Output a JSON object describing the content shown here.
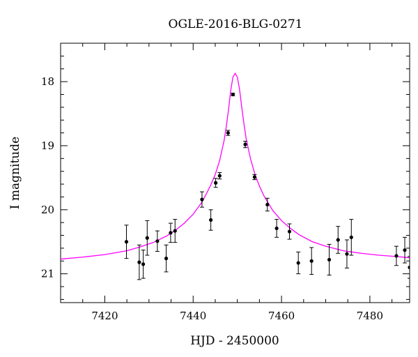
{
  "chart_data": {
    "type": "scatter",
    "title": "OGLE-2016-BLG-0271",
    "xlabel": "HJD - 2450000",
    "ylabel": "I magnitude",
    "xlim": [
      7410,
      7489
    ],
    "ylim": [
      21.45,
      17.4
    ],
    "y_inverted": true,
    "grid": false,
    "xticks": [
      7420,
      7440,
      7460,
      7480
    ],
    "xtick_labels": [
      "7420",
      "7440",
      "7460",
      "7480"
    ],
    "yticks": [
      18,
      19,
      20,
      21
    ],
    "ytick_labels": [
      "18",
      "19",
      "20",
      "21"
    ],
    "series": [
      {
        "kind": "points_with_errorbars",
        "color": "#000000",
        "points": [
          {
            "x": 7424.9,
            "y": 20.5,
            "err": 0.26
          },
          {
            "x": 7427.8,
            "y": 20.82,
            "err": 0.27
          },
          {
            "x": 7428.7,
            "y": 20.85,
            "err": 0.22
          },
          {
            "x": 7429.6,
            "y": 20.44,
            "err": 0.27
          },
          {
            "x": 7431.9,
            "y": 20.49,
            "err": 0.16
          },
          {
            "x": 7433.9,
            "y": 20.76,
            "err": 0.21
          },
          {
            "x": 7434.9,
            "y": 20.36,
            "err": 0.15
          },
          {
            "x": 7435.9,
            "y": 20.33,
            "err": 0.18
          },
          {
            "x": 7442.0,
            "y": 19.84,
            "err": 0.12
          },
          {
            "x": 7444.0,
            "y": 20.16,
            "err": 0.16
          },
          {
            "x": 7445.1,
            "y": 19.58,
            "err": 0.07
          },
          {
            "x": 7446.0,
            "y": 19.47,
            "err": 0.05
          },
          {
            "x": 7447.9,
            "y": 18.8,
            "err": 0.04
          },
          {
            "x": 7449.0,
            "y": 18.2,
            "err": 0.02
          },
          {
            "x": 7451.8,
            "y": 18.98,
            "err": 0.05
          },
          {
            "x": 7453.9,
            "y": 19.49,
            "err": 0.04
          },
          {
            "x": 7456.8,
            "y": 19.92,
            "err": 0.1
          },
          {
            "x": 7458.9,
            "y": 20.29,
            "err": 0.14
          },
          {
            "x": 7461.8,
            "y": 20.34,
            "err": 0.12
          },
          {
            "x": 7463.8,
            "y": 20.83,
            "err": 0.17
          },
          {
            "x": 7466.8,
            "y": 20.8,
            "err": 0.21
          },
          {
            "x": 7470.8,
            "y": 20.78,
            "err": 0.24
          },
          {
            "x": 7472.8,
            "y": 20.47,
            "err": 0.21
          },
          {
            "x": 7474.8,
            "y": 20.69,
            "err": 0.22
          },
          {
            "x": 7475.8,
            "y": 20.43,
            "err": 0.28
          },
          {
            "x": 7486.0,
            "y": 20.72,
            "err": 0.15
          },
          {
            "x": 7487.9,
            "y": 20.63,
            "err": 0.2
          },
          {
            "x": 7489.0,
            "y": 20.9,
            "err": 0.17
          }
        ]
      },
      {
        "kind": "model_curve",
        "color": "#ff00ff",
        "x": [
          7410,
          7415,
          7420,
          7425,
          7428,
          7431,
          7434,
          7436,
          7438,
          7440,
          7442,
          7443,
          7444,
          7445,
          7446,
          7447,
          7447.5,
          7448,
          7448.5,
          7449,
          7449.5,
          7450,
          7450.5,
          7451,
          7451.5,
          7452,
          7453,
          7454,
          7455,
          7456,
          7458,
          7460,
          7462,
          7464,
          7467,
          7470,
          7474,
          7478,
          7482,
          7486,
          7489
        ],
        "y": [
          20.77,
          20.74,
          20.7,
          20.64,
          20.58,
          20.51,
          20.41,
          20.32,
          20.21,
          20.07,
          19.88,
          19.75,
          19.61,
          19.45,
          19.23,
          18.92,
          18.7,
          18.44,
          18.14,
          17.93,
          17.87,
          17.93,
          18.12,
          18.4,
          18.66,
          18.89,
          19.21,
          19.45,
          19.63,
          19.78,
          20.01,
          20.17,
          20.29,
          20.39,
          20.5,
          20.57,
          20.64,
          20.68,
          20.71,
          20.73,
          20.75
        ]
      }
    ]
  }
}
